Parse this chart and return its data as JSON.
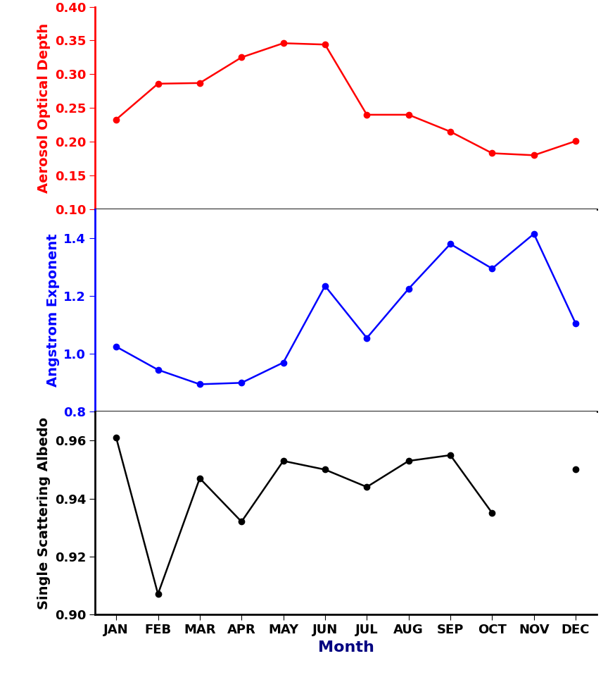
{
  "months": [
    "JAN",
    "FEB",
    "MAR",
    "APR",
    "MAY",
    "JUN",
    "JUL",
    "AUG",
    "SEP",
    "OCT",
    "NOV",
    "DEC"
  ],
  "aod": [
    0.233,
    0.286,
    0.287,
    0.325,
    0.346,
    0.344,
    0.24,
    0.24,
    0.215,
    0.183,
    0.18,
    0.201
  ],
  "angstrom": [
    1.025,
    0.945,
    0.895,
    0.9,
    0.97,
    1.235,
    1.055,
    1.225,
    1.38,
    1.295,
    1.415,
    1.105
  ],
  "ssa": [
    0.961,
    0.907,
    0.947,
    0.932,
    0.953,
    0.95,
    0.944,
    0.953,
    0.955,
    0.935,
    null,
    0.95
  ],
  "aod_color": "#FF0000",
  "angstrom_color": "#0000FF",
  "ssa_color": "#000000",
  "xlabel_color": "#000080",
  "tick_label_color": "#000000",
  "aod_ylim": [
    0.1,
    0.4
  ],
  "aod_yticks": [
    0.1,
    0.15,
    0.2,
    0.25,
    0.3,
    0.35,
    0.4
  ],
  "angstrom_ylim": [
    0.8,
    1.5
  ],
  "angstrom_yticks": [
    0.8,
    1.0,
    1.2,
    1.4
  ],
  "ssa_ylim": [
    0.9,
    0.97
  ],
  "ssa_yticks": [
    0.9,
    0.92,
    0.94,
    0.96
  ],
  "xlabel": "Month",
  "ylabel_aod": "Aerosol Optical Depth",
  "ylabel_angstrom": "Angstrom Exponent",
  "ylabel_ssa": "Single Scattering Albedo",
  "linewidth": 1.8,
  "markersize": 6,
  "marker": "o",
  "tick_fontsize": 13,
  "label_fontsize": 14,
  "xlabel_fontsize": 16
}
